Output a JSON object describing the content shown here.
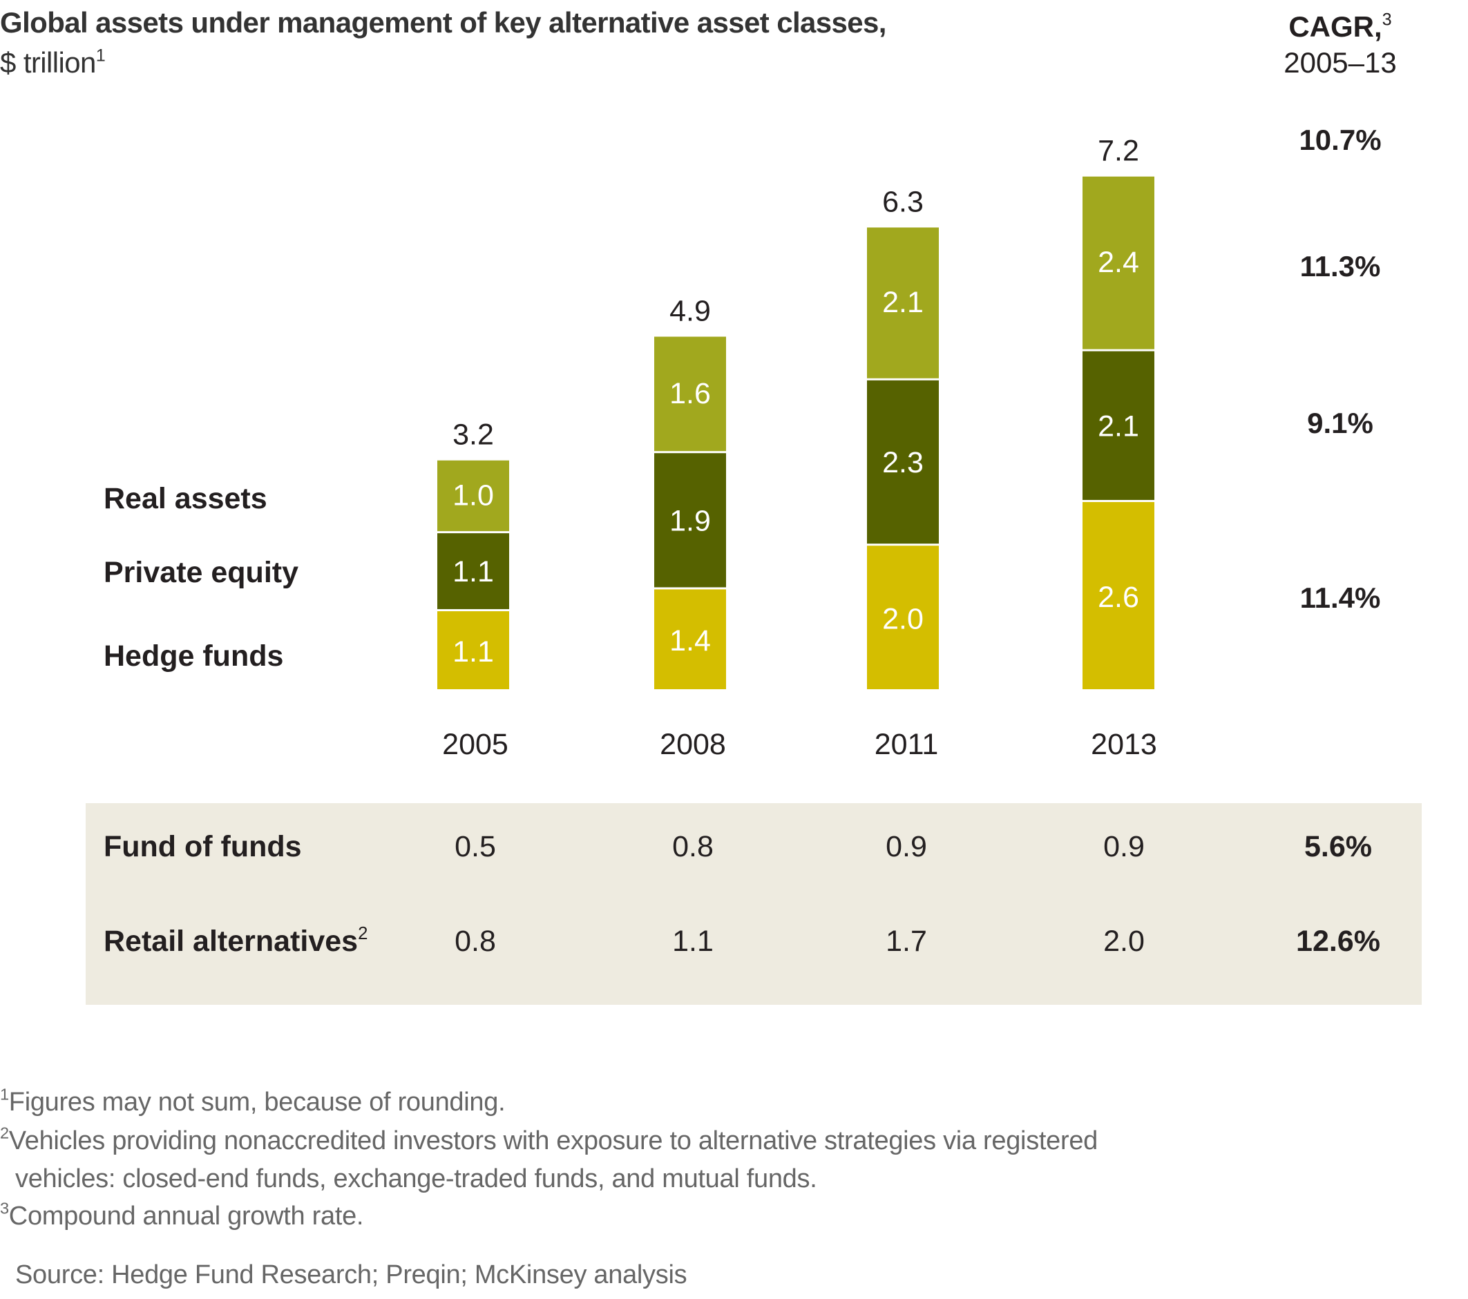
{
  "header": {
    "title": "Global assets under management of key alternative asset classes,",
    "subtitle": "$ trillion",
    "subtitle_note": "1",
    "cagr_label": "CAGR,",
    "cagr_note": "3",
    "cagr_period": "2005–13"
  },
  "colors": {
    "real_assets": "#A1A81E",
    "private_equity": "#566200",
    "hedge_funds": "#D4BE00",
    "table_bg": "#EEEBE0"
  },
  "chart_data": {
    "type": "bar",
    "stacked": true,
    "title": "Global assets under management of key alternative asset classes, $ trillion",
    "ylabel": "$ trillion",
    "categories": [
      "2005",
      "2008",
      "2011",
      "2013"
    ],
    "series": [
      {
        "name": "Hedge funds",
        "values": [
          1.1,
          1.4,
          2.0,
          2.6
        ],
        "value_labels": [
          "1.1",
          "1.4",
          "2.0",
          "2.6"
        ],
        "cagr": "11.4%"
      },
      {
        "name": "Private equity",
        "values": [
          1.1,
          1.9,
          2.3,
          2.1
        ],
        "value_labels": [
          "1.1",
          "1.9",
          "2.3",
          "2.1"
        ],
        "cagr": "9.1%"
      },
      {
        "name": "Real assets",
        "values": [
          1.0,
          1.6,
          2.1,
          2.4
        ],
        "value_labels": [
          "1.0",
          "1.6",
          "2.1",
          "2.4"
        ],
        "cagr": "11.3%"
      }
    ],
    "totals": [
      3.2,
      4.9,
      6.3,
      7.2
    ],
    "total_labels": [
      "3.2",
      "4.9",
      "6.3",
      "7.2"
    ],
    "total_cagr": "10.7%",
    "legend": [
      "Real assets",
      "Private equity",
      "Hedge funds"
    ],
    "legend_position": "left",
    "grid": false
  },
  "table": {
    "rows": [
      {
        "label": "Fund of funds",
        "note": "",
        "values": [
          "0.5",
          "0.8",
          "0.9",
          "0.9"
        ],
        "cagr": "5.6%"
      },
      {
        "label": "Retail alternatives",
        "note": "2",
        "values": [
          "0.8",
          "1.1",
          "1.7",
          "2.0"
        ],
        "cagr": "12.6%"
      }
    ]
  },
  "footnotes": [
    {
      "mark": "1",
      "text": "Figures may not sum, because of rounding."
    },
    {
      "mark": "2",
      "text": "Vehicles providing nonaccredited investors with exposure to alternative strategies via registered"
    },
    {
      "mark": "",
      "text": "vehicles: closed-end funds, exchange-traded funds, and mutual funds."
    },
    {
      "mark": "3",
      "text": "Compound annual growth rate."
    }
  ],
  "source": "Source: Hedge Fund Research; Preqin; McKinsey analysis"
}
